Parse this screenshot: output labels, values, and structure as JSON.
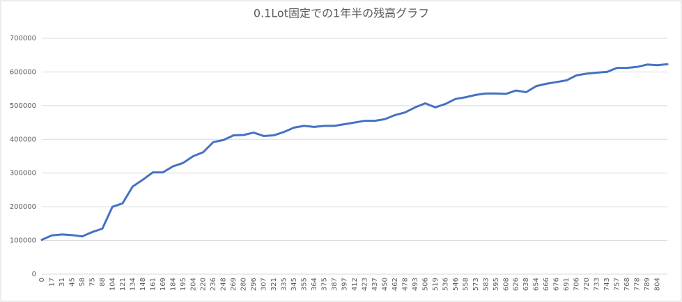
{
  "chart_data": {
    "type": "line",
    "title": "0.1Lot固定での1年半の残高グラフ",
    "categories": [
      "0",
      "17",
      "31",
      "45",
      "58",
      "75",
      "88",
      "104",
      "121",
      "134",
      "148",
      "161",
      "169",
      "184",
      "195",
      "204",
      "220",
      "236",
      "248",
      "269",
      "280",
      "296",
      "307",
      "321",
      "335",
      "345",
      "355",
      "364",
      "375",
      "387",
      "397",
      "412",
      "423",
      "437",
      "450",
      "462",
      "478",
      "493",
      "506",
      "519",
      "536",
      "546",
      "558",
      "573",
      "583",
      "595",
      "608",
      "626",
      "638",
      "654",
      "666",
      "676",
      "691",
      "706",
      "720",
      "733",
      "743",
      "757",
      "768",
      "778",
      "789",
      "804",
      null
    ],
    "values": [
      102000,
      115000,
      118000,
      116000,
      112000,
      125000,
      135000,
      200000,
      210000,
      260000,
      280000,
      302000,
      302000,
      320000,
      330000,
      350000,
      362000,
      392000,
      398000,
      412000,
      413000,
      420000,
      410000,
      412000,
      422000,
      435000,
      440000,
      437000,
      440000,
      440000,
      445000,
      450000,
      455000,
      455000,
      460000,
      472000,
      480000,
      495000,
      507000,
      495000,
      505000,
      520000,
      525000,
      532000,
      536000,
      536000,
      535000,
      545000,
      540000,
      558000,
      565000,
      570000,
      575000,
      590000,
      595000,
      598000,
      600000,
      612000,
      612000,
      615000,
      622000,
      620000,
      623000
    ],
    "color": "#4472c4",
    "ylim": [
      0,
      700000
    ],
    "yticks": [
      0,
      100000,
      200000,
      300000,
      400000,
      500000,
      600000,
      700000
    ],
    "grid": true
  }
}
